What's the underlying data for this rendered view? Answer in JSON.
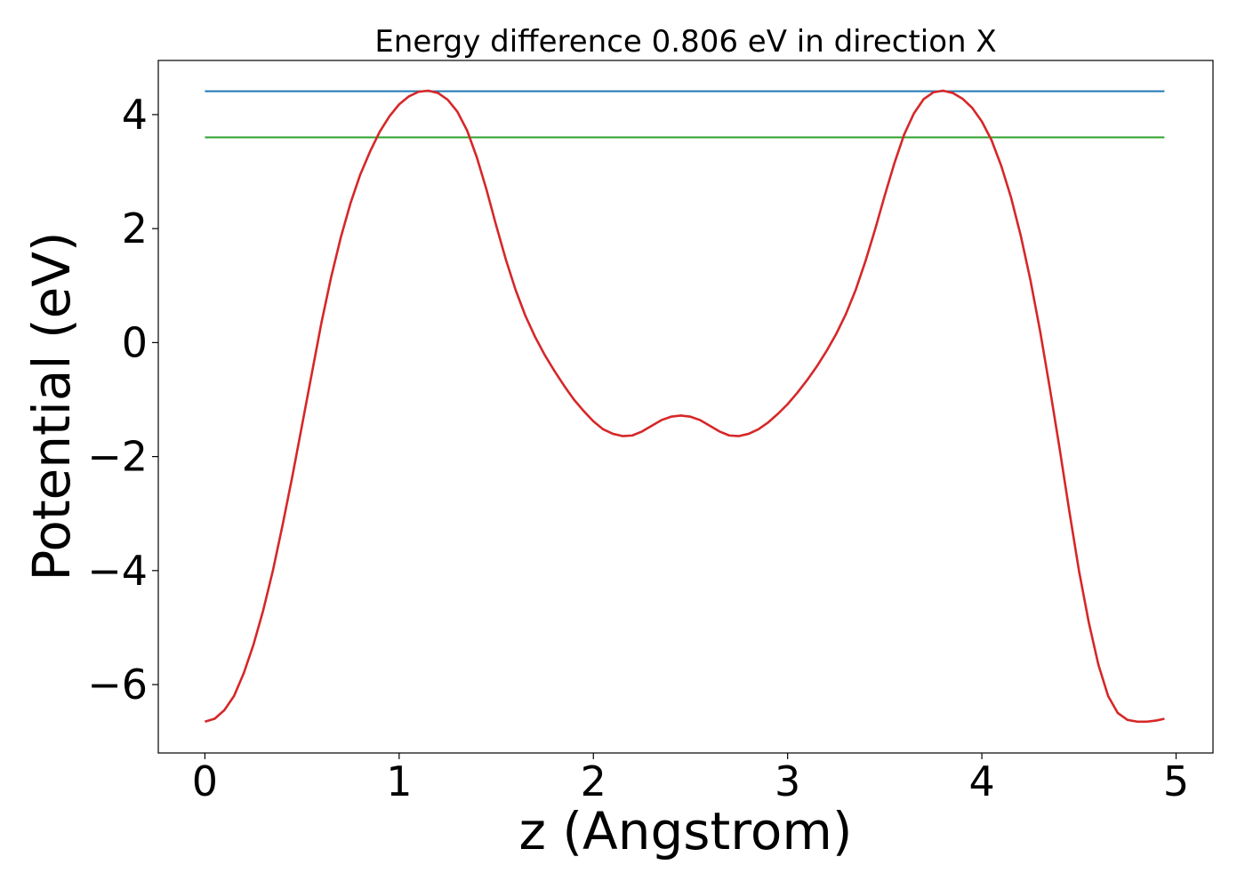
{
  "chart_data": {
    "type": "line",
    "title": "Energy difference 0.806 eV in direction X",
    "xlabel": "z (Angstrom)",
    "ylabel": "Potential (eV)",
    "xlim": [
      -0.24,
      5.19
    ],
    "ylim": [
      -7.2,
      4.95
    ],
    "xticks": [
      0,
      1,
      2,
      3,
      4,
      5
    ],
    "xtick_labels": [
      "0",
      "1",
      "2",
      "3",
      "4",
      "5"
    ],
    "yticks": [
      -6,
      -4,
      -2,
      0,
      2,
      4
    ],
    "ytick_labels": [
      "−6",
      "−4",
      "−2",
      "0",
      "2",
      "4"
    ],
    "grid": false,
    "series": [
      {
        "color": "#1f77b4",
        "x": [
          0,
          4.94
        ],
        "y": [
          4.41,
          4.41
        ]
      },
      {
        "color": "#2ca02c",
        "x": [
          0,
          4.94
        ],
        "y": [
          3.6,
          3.6
        ]
      },
      {
        "color": "#d62728",
        "x": [
          0,
          0.05,
          0.1,
          0.15,
          0.2,
          0.25,
          0.3,
          0.35,
          0.4,
          0.45,
          0.5,
          0.55,
          0.6,
          0.65,
          0.7,
          0.75,
          0.8,
          0.85,
          0.9,
          0.95,
          1.0,
          1.05,
          1.1,
          1.15,
          1.2,
          1.25,
          1.3,
          1.35,
          1.4,
          1.45,
          1.5,
          1.55,
          1.6,
          1.65,
          1.7,
          1.75,
          1.8,
          1.85,
          1.9,
          1.95,
          2.0,
          2.05,
          2.1,
          2.15,
          2.2,
          2.25,
          2.3,
          2.35,
          2.4,
          2.45,
          2.5,
          2.55,
          2.6,
          2.65,
          2.7,
          2.75,
          2.8,
          2.85,
          2.9,
          2.95,
          3.0,
          3.05,
          3.1,
          3.15,
          3.2,
          3.25,
          3.3,
          3.35,
          3.4,
          3.45,
          3.5,
          3.55,
          3.6,
          3.65,
          3.7,
          3.75,
          3.8,
          3.85,
          3.9,
          3.95,
          4.0,
          4.05,
          4.1,
          4.15,
          4.2,
          4.25,
          4.3,
          4.35,
          4.4,
          4.45,
          4.5,
          4.55,
          4.6,
          4.65,
          4.7,
          4.75,
          4.8,
          4.85,
          4.9,
          4.94
        ],
        "y": [
          -6.65,
          -6.6,
          -6.45,
          -6.2,
          -5.8,
          -5.3,
          -4.7,
          -4.0,
          -3.2,
          -2.35,
          -1.45,
          -0.55,
          0.35,
          1.15,
          1.85,
          2.45,
          2.95,
          3.35,
          3.7,
          3.97,
          4.18,
          4.32,
          4.4,
          4.42,
          4.38,
          4.26,
          4.05,
          3.72,
          3.25,
          2.68,
          2.05,
          1.45,
          0.92,
          0.47,
          0.1,
          -0.22,
          -0.5,
          -0.76,
          -1.0,
          -1.2,
          -1.38,
          -1.52,
          -1.6,
          -1.64,
          -1.63,
          -1.56,
          -1.46,
          -1.36,
          -1.3,
          -1.28,
          -1.3,
          -1.36,
          -1.46,
          -1.56,
          -1.63,
          -1.64,
          -1.6,
          -1.52,
          -1.4,
          -1.25,
          -1.08,
          -0.88,
          -0.66,
          -0.42,
          -0.15,
          0.15,
          0.5,
          0.92,
          1.42,
          1.98,
          2.58,
          3.15,
          3.65,
          4.02,
          4.27,
          4.39,
          4.42,
          4.38,
          4.28,
          4.12,
          3.88,
          3.55,
          3.1,
          2.55,
          1.88,
          1.1,
          0.2,
          -0.8,
          -1.85,
          -2.95,
          -4.0,
          -4.9,
          -5.65,
          -6.2,
          -6.5,
          -6.62,
          -6.65,
          -6.65,
          -6.63,
          -6.6
        ]
      }
    ]
  }
}
